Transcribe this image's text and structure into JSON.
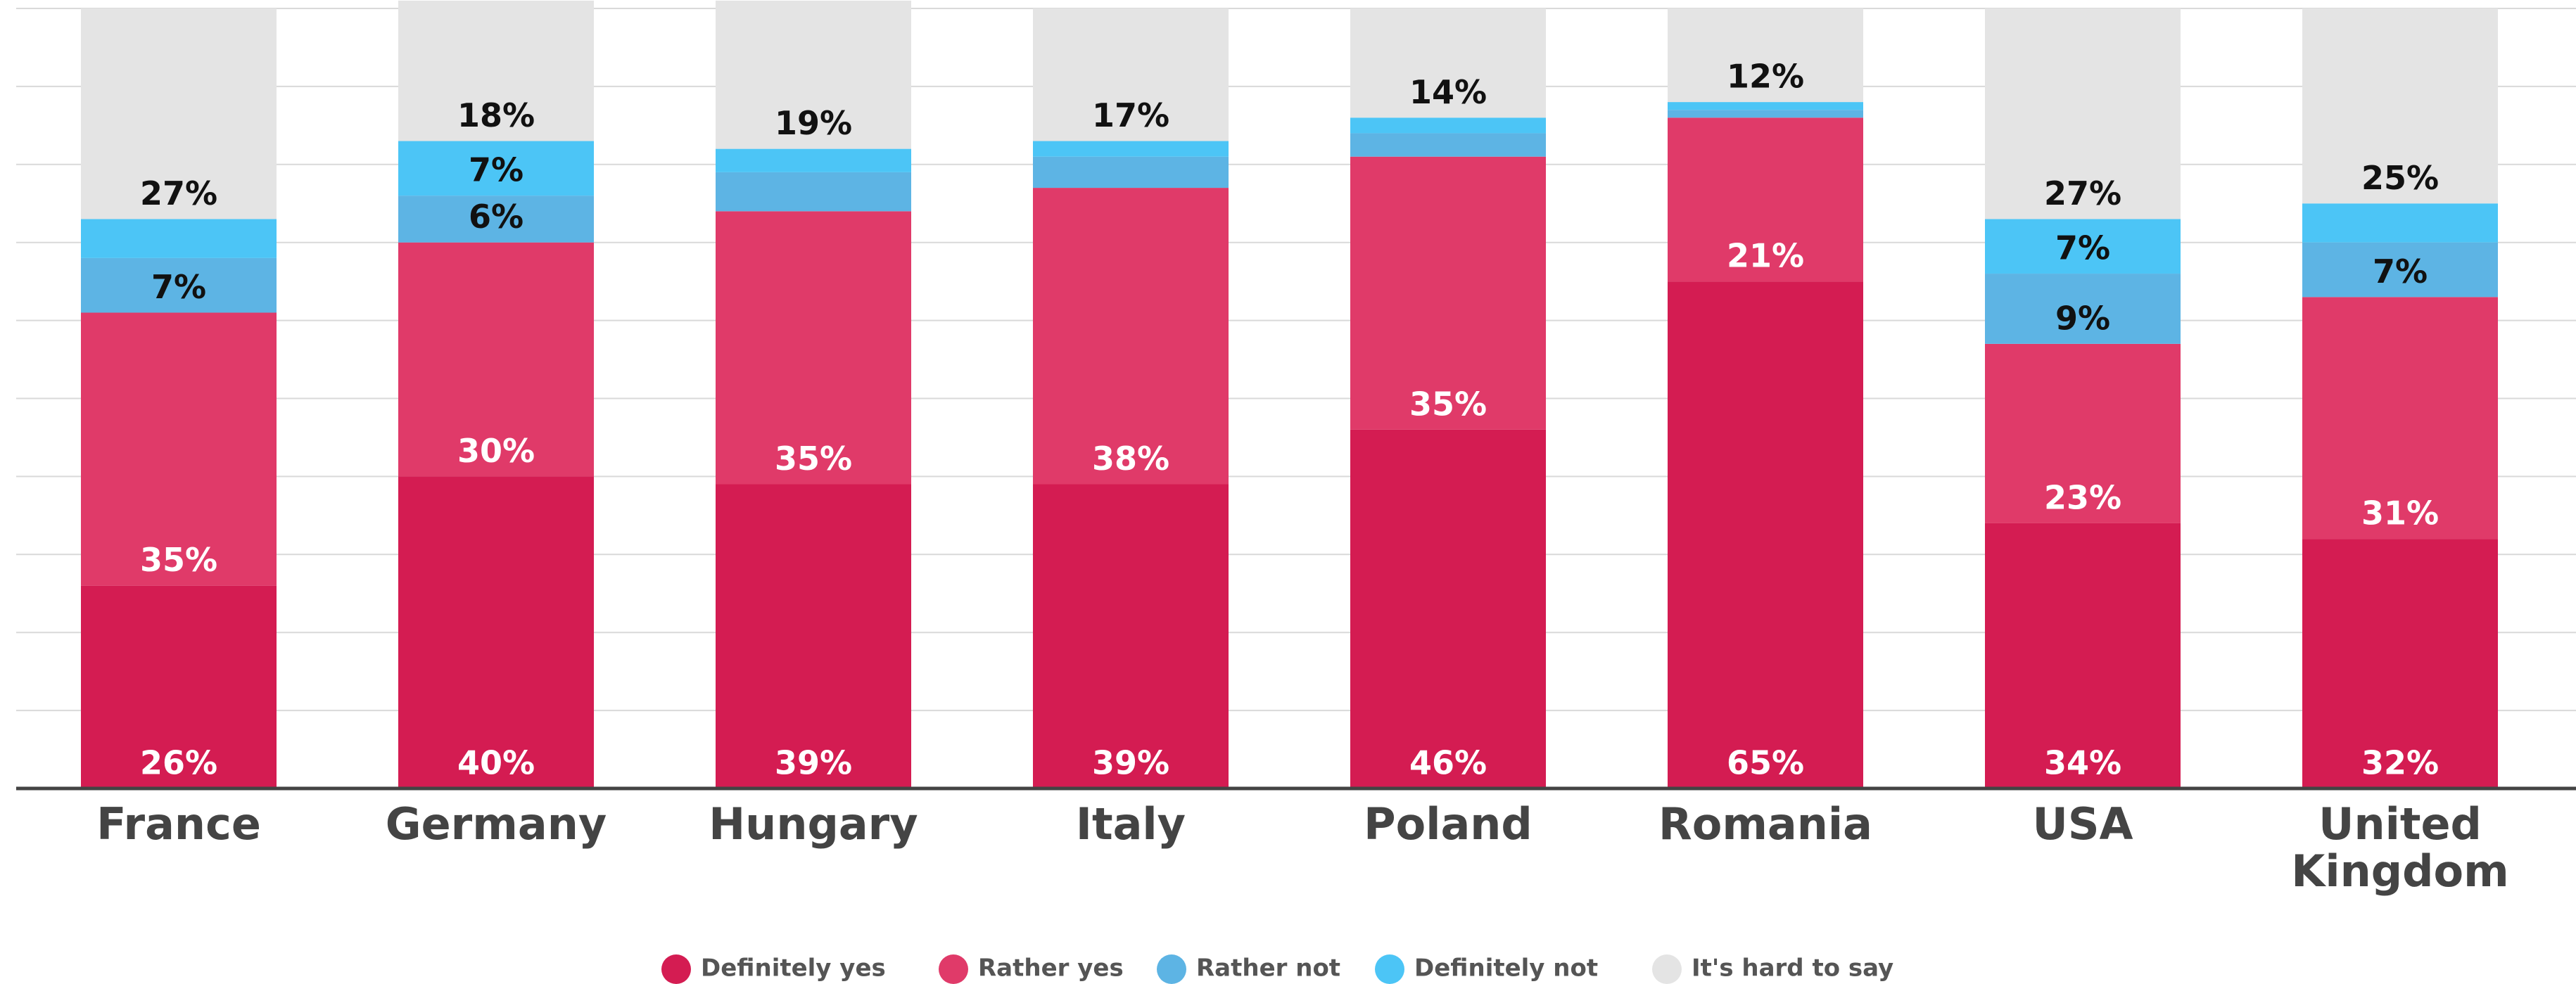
{
  "chart_data": {
    "type": "stacked_bar",
    "categories": [
      "France",
      "Germany",
      "Hungary",
      "Italy",
      "Poland",
      "Romania",
      "USA",
      "United\nKingdom"
    ],
    "ylim": [
      0,
      100
    ],
    "yticks": [
      0,
      10,
      20,
      30,
      40,
      50,
      60,
      70,
      80,
      90,
      100
    ],
    "grid": true,
    "legend": "bottom",
    "series": [
      {
        "name": "Definitely yes",
        "color": "#d41c52",
        "values": [
          26,
          40,
          39,
          39,
          46,
          65,
          34,
          32
        ],
        "value_labels": [
          "26%",
          "40%",
          "39%",
          "39%",
          "46%",
          "65%",
          "34%",
          "32%"
        ]
      },
      {
        "name": "Rather yes",
        "color": "#e03a69",
        "values": [
          35,
          30,
          35,
          38,
          35,
          21,
          23,
          31
        ],
        "value_labels": [
          "35%",
          "30%",
          "35%",
          "38%",
          "35%",
          "21%",
          "23%",
          "31%"
        ]
      },
      {
        "name": "Rather not",
        "color": "#5db4e4",
        "values": [
          7,
          6,
          5,
          4,
          3,
          1,
          9,
          7
        ],
        "value_labels": [
          "7%",
          "6%",
          null,
          null,
          null,
          null,
          "9%",
          "7%"
        ]
      },
      {
        "name": "Definitely not",
        "color": "#4cc5f6",
        "values": [
          5,
          7,
          3,
          2,
          2,
          1,
          7,
          5
        ],
        "value_labels": [
          null,
          "7%",
          null,
          null,
          null,
          null,
          "7%",
          null
        ]
      },
      {
        "name": "It's hard to say",
        "color": "#e4e4e4",
        "values": [
          27,
          18,
          19,
          17,
          14,
          12,
          27,
          25
        ],
        "value_labels": [
          "27%",
          "18%",
          "19%",
          "17%",
          "14%",
          "12%",
          "27%",
          "25%"
        ]
      }
    ]
  }
}
